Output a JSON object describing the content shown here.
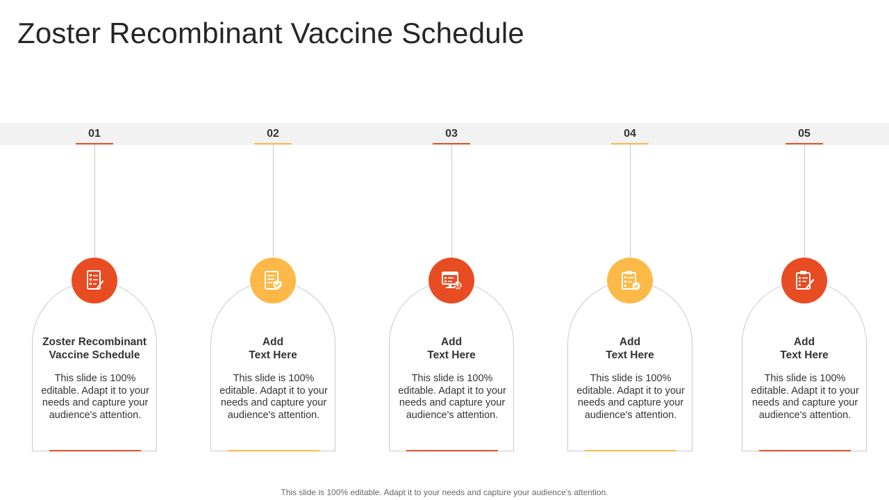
{
  "title": "Zoster Recombinant Vaccine Schedule",
  "colors": {
    "orange_red": "#e84c22",
    "yellow": "#fdb948",
    "band": "#f2f2f2"
  },
  "steps": [
    {
      "number": "01",
      "title": "Zoster Recombinant\nVaccine Schedule",
      "description": "This slide is 100% editable. Adapt it to your needs and capture your audience's attention.",
      "icon": "checklist-icon",
      "color": "#e84c22"
    },
    {
      "number": "02",
      "title": "Add\nText Here",
      "description": "This slide is 100% editable. Adapt it to your needs and capture your audience's attention.",
      "icon": "document-check-icon",
      "color": "#fdb948"
    },
    {
      "number": "03",
      "title": "Add\nText Here",
      "description": "This slide is 100% editable. Adapt it to your needs and capture your audience's attention.",
      "icon": "monitor-settings-icon",
      "color": "#e84c22"
    },
    {
      "number": "04",
      "title": "Add\nText Here",
      "description": "This slide is 100% editable. Adapt it to your needs and capture your audience's attention.",
      "icon": "clipboard-gear-icon",
      "color": "#fdb948"
    },
    {
      "number": "05",
      "title": "Add\nText Here",
      "description": "This slide is 100% editable. Adapt it to your needs and capture your audience's attention.",
      "icon": "clipboard-pen-icon",
      "color": "#e84c22"
    }
  ],
  "footer": "This slide is 100% editable. Adapt it to your needs and capture your audience's attention."
}
